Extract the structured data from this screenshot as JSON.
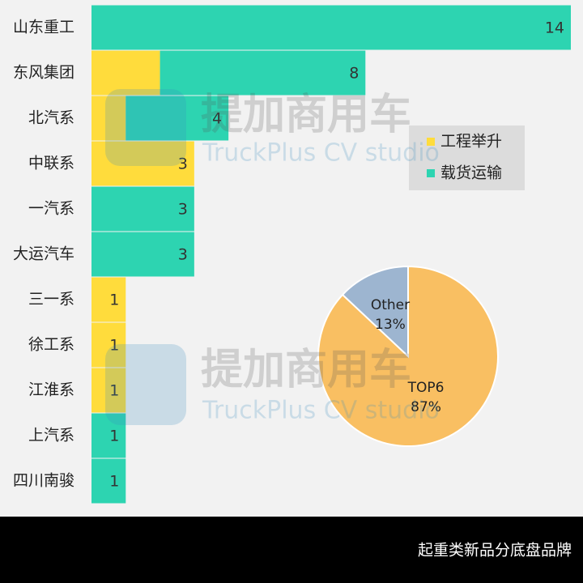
{
  "chart_data": [
    {
      "type": "stacked-barh",
      "title": "起重类新品分底盘品牌",
      "categories": [
        "山东重工",
        "东风集团",
        "北汽系",
        "中联系",
        "一汽系",
        "大运汽车",
        "三一系",
        "徐工系",
        "江淮系",
        "上汽系",
        "四川南骏"
      ],
      "series": [
        {
          "name": "工程举升",
          "color": "#ffdc3c",
          "values": [
            0,
            2,
            1,
            3,
            0,
            0,
            1,
            1,
            1,
            0,
            0
          ]
        },
        {
          "name": "载货运输",
          "color": "#2dd4b1",
          "values": [
            14,
            6,
            3,
            0,
            3,
            3,
            0,
            0,
            0,
            1,
            1
          ]
        }
      ],
      "totals": [
        14,
        8,
        4,
        3,
        3,
        3,
        1,
        1,
        1,
        1,
        1
      ],
      "xlim": [
        0,
        14
      ],
      "legend": "upper right"
    },
    {
      "type": "pie",
      "categories": [
        "TOP6",
        "Other"
      ],
      "values": [
        87,
        13
      ],
      "value_labels": [
        "87%",
        "13%"
      ],
      "colors": [
        "#f9bf62",
        "#9db5d0"
      ]
    }
  ],
  "watermark": [
    "提加商用车",
    "TruckPlus CV studio"
  ]
}
